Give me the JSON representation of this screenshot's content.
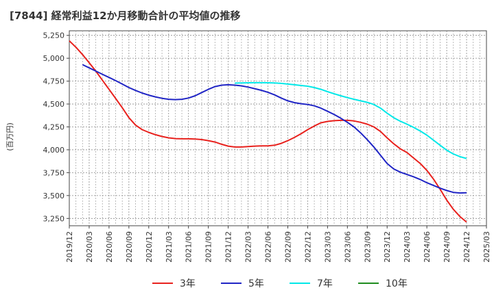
{
  "chart_data": {
    "type": "line",
    "title": "[7844]  経常利益12か月移動合計の平均値の推移",
    "xlabel": "",
    "ylabel": "(百万円)",
    "ylim": [
      3170,
      5300
    ],
    "yticks": [
      3250,
      3500,
      3750,
      4000,
      4250,
      4500,
      4750,
      5000,
      5250
    ],
    "ytick_labels": [
      "3,250",
      "3,500",
      "3,750",
      "4,000",
      "4,250",
      "4,500",
      "4,750",
      "5,000",
      "5,250"
    ],
    "xlim": [
      "2019/12",
      "2025/03"
    ],
    "x_tick_labels": [
      "2019/12",
      "2020/03",
      "2020/06",
      "2020/09",
      "2020/12",
      "2021/03",
      "2021/06",
      "2021/09",
      "2021/12",
      "2022/03",
      "2022/06",
      "2022/09",
      "2022/12",
      "2023/03",
      "2023/06",
      "2023/09",
      "2023/12",
      "2024/03",
      "2024/06",
      "2024/09",
      "2024/12",
      "2025/03"
    ],
    "grid": true,
    "legend_position": "bottom",
    "series": [
      {
        "name": "3年",
        "color": "#e8211d",
        "points": [
          [
            "2019/12",
            5190
          ],
          [
            "2020/01",
            5120
          ],
          [
            "2020/02",
            5040
          ],
          [
            "2020/03",
            4950
          ],
          [
            "2020/04",
            4860
          ],
          [
            "2020/05",
            4760
          ],
          [
            "2020/06",
            4660
          ],
          [
            "2020/07",
            4560
          ],
          [
            "2020/08",
            4460
          ],
          [
            "2020/09",
            4350
          ],
          [
            "2020/10",
            4270
          ],
          [
            "2020/11",
            4220
          ],
          [
            "2020/12",
            4190
          ],
          [
            "2021/01",
            4165
          ],
          [
            "2021/02",
            4145
          ],
          [
            "2021/03",
            4130
          ],
          [
            "2021/04",
            4122
          ],
          [
            "2021/05",
            4120
          ],
          [
            "2021/06",
            4120
          ],
          [
            "2021/07",
            4118
          ],
          [
            "2021/08",
            4112
          ],
          [
            "2021/09",
            4100
          ],
          [
            "2021/10",
            4085
          ],
          [
            "2021/11",
            4060
          ],
          [
            "2021/12",
            4040
          ],
          [
            "2022/01",
            4030
          ],
          [
            "2022/02",
            4030
          ],
          [
            "2022/03",
            4035
          ],
          [
            "2022/04",
            4040
          ],
          [
            "2022/05",
            4042
          ],
          [
            "2022/06",
            4042
          ],
          [
            "2022/07",
            4050
          ],
          [
            "2022/08",
            4070
          ],
          [
            "2022/09",
            4100
          ],
          [
            "2022/10",
            4135
          ],
          [
            "2022/11",
            4175
          ],
          [
            "2022/12",
            4220
          ],
          [
            "2023/01",
            4260
          ],
          [
            "2023/02",
            4295
          ],
          [
            "2023/03",
            4310
          ],
          [
            "2023/04",
            4318
          ],
          [
            "2023/05",
            4322
          ],
          [
            "2023/06",
            4322
          ],
          [
            "2023/07",
            4315
          ],
          [
            "2023/08",
            4300
          ],
          [
            "2023/09",
            4280
          ],
          [
            "2023/10",
            4250
          ],
          [
            "2023/11",
            4200
          ],
          [
            "2023/12",
            4130
          ],
          [
            "2024/01",
            4065
          ],
          [
            "2024/02",
            4010
          ],
          [
            "2024/03",
            3970
          ],
          [
            "2024/04",
            3910
          ],
          [
            "2024/05",
            3850
          ],
          [
            "2024/06",
            3775
          ],
          [
            "2024/07",
            3680
          ],
          [
            "2024/08",
            3570
          ],
          [
            "2024/09",
            3450
          ],
          [
            "2024/10",
            3350
          ],
          [
            "2024/11",
            3270
          ],
          [
            "2024/12",
            3210
          ]
        ]
      },
      {
        "name": "5年",
        "color": "#1f24c5",
        "points": [
          [
            "2020/02",
            4930
          ],
          [
            "2020/03",
            4895
          ],
          [
            "2020/04",
            4860
          ],
          [
            "2020/05",
            4825
          ],
          [
            "2020/06",
            4790
          ],
          [
            "2020/07",
            4755
          ],
          [
            "2020/08",
            4718
          ],
          [
            "2020/09",
            4680
          ],
          [
            "2020/10",
            4648
          ],
          [
            "2020/11",
            4620
          ],
          [
            "2020/12",
            4597
          ],
          [
            "2021/01",
            4578
          ],
          [
            "2021/02",
            4562
          ],
          [
            "2021/03",
            4552
          ],
          [
            "2021/04",
            4548
          ],
          [
            "2021/05",
            4552
          ],
          [
            "2021/06",
            4565
          ],
          [
            "2021/07",
            4590
          ],
          [
            "2021/08",
            4625
          ],
          [
            "2021/09",
            4660
          ],
          [
            "2021/10",
            4690
          ],
          [
            "2021/11",
            4706
          ],
          [
            "2021/12",
            4710
          ],
          [
            "2022/01",
            4706
          ],
          [
            "2022/02",
            4698
          ],
          [
            "2022/03",
            4685
          ],
          [
            "2022/04",
            4668
          ],
          [
            "2022/05",
            4650
          ],
          [
            "2022/06",
            4628
          ],
          [
            "2022/07",
            4600
          ],
          [
            "2022/08",
            4565
          ],
          [
            "2022/09",
            4535
          ],
          [
            "2022/10",
            4515
          ],
          [
            "2022/11",
            4503
          ],
          [
            "2022/12",
            4495
          ],
          [
            "2023/01",
            4480
          ],
          [
            "2023/02",
            4455
          ],
          [
            "2023/03",
            4420
          ],
          [
            "2023/04",
            4385
          ],
          [
            "2023/05",
            4345
          ],
          [
            "2023/06",
            4300
          ],
          [
            "2023/07",
            4250
          ],
          [
            "2023/08",
            4185
          ],
          [
            "2023/09",
            4110
          ],
          [
            "2023/10",
            4030
          ],
          [
            "2023/11",
            3940
          ],
          [
            "2023/12",
            3850
          ],
          [
            "2024/01",
            3790
          ],
          [
            "2024/02",
            3755
          ],
          [
            "2024/03",
            3730
          ],
          [
            "2024/04",
            3705
          ],
          [
            "2024/05",
            3675
          ],
          [
            "2024/06",
            3640
          ],
          [
            "2024/07",
            3610
          ],
          [
            "2024/08",
            3580
          ],
          [
            "2024/09",
            3555
          ],
          [
            "2024/10",
            3535
          ],
          [
            "2024/11",
            3528
          ],
          [
            "2024/12",
            3530
          ]
        ]
      },
      {
        "name": "7年",
        "color": "#00e8e8",
        "points": [
          [
            "2022/01",
            4728
          ],
          [
            "2022/02",
            4730
          ],
          [
            "2022/03",
            4732
          ],
          [
            "2022/04",
            4733
          ],
          [
            "2022/05",
            4733
          ],
          [
            "2022/06",
            4732
          ],
          [
            "2022/07",
            4730
          ],
          [
            "2022/08",
            4725
          ],
          [
            "2022/09",
            4718
          ],
          [
            "2022/10",
            4710
          ],
          [
            "2022/11",
            4702
          ],
          [
            "2022/12",
            4695
          ],
          [
            "2023/01",
            4680
          ],
          [
            "2023/02",
            4660
          ],
          [
            "2023/03",
            4635
          ],
          [
            "2023/04",
            4612
          ],
          [
            "2023/05",
            4590
          ],
          [
            "2023/06",
            4570
          ],
          [
            "2023/07",
            4552
          ],
          [
            "2023/08",
            4535
          ],
          [
            "2023/09",
            4518
          ],
          [
            "2023/10",
            4495
          ],
          [
            "2023/11",
            4455
          ],
          [
            "2023/12",
            4400
          ],
          [
            "2024/01",
            4350
          ],
          [
            "2024/02",
            4312
          ],
          [
            "2024/03",
            4280
          ],
          [
            "2024/04",
            4245
          ],
          [
            "2024/05",
            4205
          ],
          [
            "2024/06",
            4160
          ],
          [
            "2024/07",
            4105
          ],
          [
            "2024/08",
            4050
          ],
          [
            "2024/09",
            3995
          ],
          [
            "2024/10",
            3955
          ],
          [
            "2024/11",
            3925
          ],
          [
            "2024/12",
            3905
          ]
        ]
      },
      {
        "name": "10年",
        "color": "#1e8c1e",
        "points": []
      }
    ]
  }
}
